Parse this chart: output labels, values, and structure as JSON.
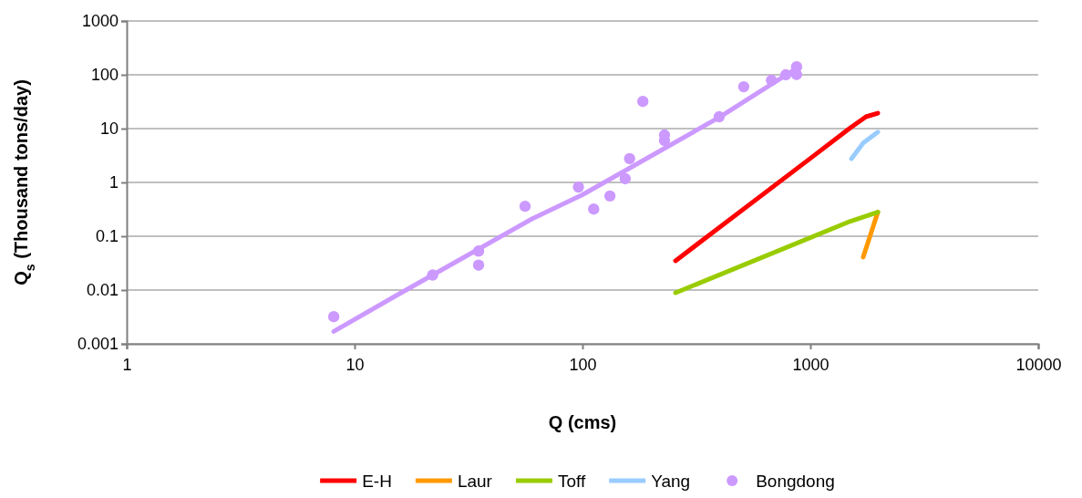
{
  "chart_data": {
    "type": "line",
    "xlabel": "Q (cms)",
    "ylabel": "Q$_{s}$ (Thousand tons/day)",
    "log": "xy",
    "grid": "y",
    "legend": "bottom",
    "xlim": [
      1,
      10000
    ],
    "xticks": [
      1,
      10,
      100,
      1000,
      10000
    ],
    "ylim": [
      0.001,
      1000
    ],
    "yticks": [
      0.001,
      0.01,
      0.1,
      1,
      10,
      100,
      1000
    ],
    "series": [
      {
        "name": "E-H",
        "type": "line",
        "color": "#ff0000",
        "marker": "none",
        "x": [
          256,
          1000,
          1500,
          1754,
          1977
        ],
        "values": [
          0.035,
          2.8,
          10.4,
          16.6,
          19.4
        ]
      },
      {
        "name": "Laur",
        "type": "line",
        "color": "#ff9900",
        "marker": "none",
        "x": [
          1706,
          1977
        ],
        "values": [
          0.041,
          0.28
        ]
      },
      {
        "name": "Toff",
        "type": "line",
        "color": "#99cc00",
        "marker": "none",
        "x": [
          256,
          1500,
          1977
        ],
        "values": [
          0.0089,
          0.19,
          0.28
        ]
      },
      {
        "name": "Yang",
        "type": "line",
        "color": "#99ccff",
        "marker": "none",
        "x": [
          1515,
          1706,
          1977
        ],
        "values": [
          2.76,
          5.4,
          8.6
        ]
      },
      {
        "name": "Bongdong",
        "type": "scatter",
        "color": "#cc99ff",
        "marker": "circle",
        "x": [
          8.1,
          22,
          35,
          35,
          56,
          96,
          112,
          132,
          154,
          161,
          184,
          229,
          229,
          398,
          510,
          675,
          780,
          870,
          870
        ],
        "values": [
          0.0032,
          0.019,
          0.053,
          0.029,
          0.36,
          0.82,
          0.32,
          0.56,
          1.17,
          2.76,
          32,
          7.6,
          6.0,
          16.6,
          60,
          79,
          100,
          101,
          141
        ]
      },
      {
        "color": "#cc99ff",
        "marker": "none",
        "x": [
          8.1,
          15,
          30,
          60,
          100,
          200,
          400,
          870
        ],
        "values": [
          0.0017,
          0.0076,
          0.04,
          0.21,
          0.59,
          3.1,
          16.4,
          132
        ]
      }
    ]
  }
}
